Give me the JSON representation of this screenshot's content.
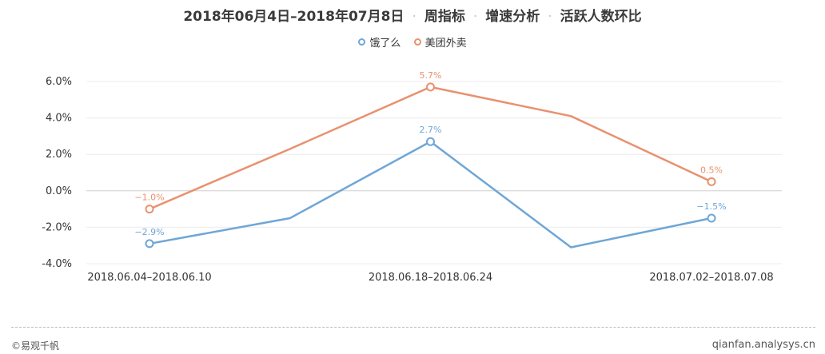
{
  "header": {
    "title_parts": [
      "2018年06月4日–2018年07月8日",
      "周指标",
      "增速分析",
      "活跃人数环比"
    ]
  },
  "footer": {
    "left_text": "©易观千帆",
    "right_text": "qianfan.analysys.cn"
  },
  "chart_data": {
    "type": "line",
    "title": "",
    "xlabel": "",
    "ylabel": "",
    "legend_position": "top-center",
    "grid": true,
    "ylim": [
      -4.0,
      6.0
    ],
    "yticks": [
      -4.0,
      -2.0,
      0.0,
      2.0,
      4.0,
      6.0
    ],
    "ytick_labels": [
      "-4.0%",
      "-2.0%",
      "0.0%",
      "2.0%",
      "4.0%",
      "6.0%"
    ],
    "x": [
      0,
      1,
      2,
      3,
      4
    ],
    "xtick_positions": [
      0,
      2,
      4
    ],
    "xtick_labels": [
      "2018.06.04–2018.06.10",
      "2018.06.18–2018.06.24",
      "2018.07.02–2018.07.08"
    ],
    "series": [
      {
        "name": "饿了么",
        "color": "#6fa6d6",
        "values": [
          -2.9,
          -1.5,
          2.7,
          -3.1,
          -1.5
        ],
        "labels": [
          "−2.9%",
          null,
          "2.7%",
          null,
          "−1.5%"
        ]
      },
      {
        "name": "美团外卖",
        "color": "#e8916f",
        "values": [
          -1.0,
          2.3,
          5.7,
          4.1,
          0.5
        ],
        "labels": [
          "−1.0%",
          null,
          "5.7%",
          null,
          "0.5%"
        ]
      }
    ]
  }
}
